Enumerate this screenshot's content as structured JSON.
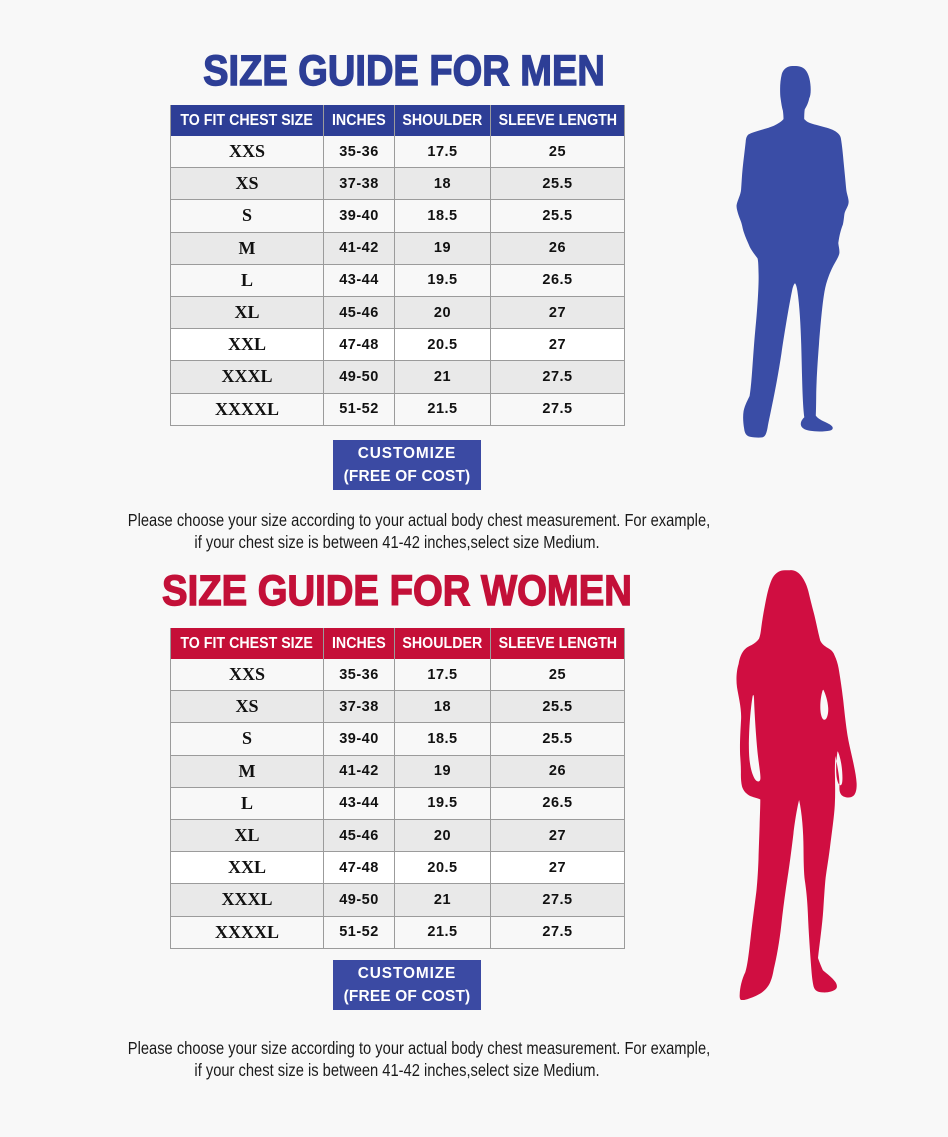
{
  "page": {
    "background": "#f8f8f8"
  },
  "sections": [
    {
      "id": "men",
      "title": "SIZE GUIDE FOR MEN",
      "accent": "#2d3e96",
      "header_bg": "#2d3e96",
      "figure": "man-silhouette",
      "figure_color": "#3a4da6",
      "table": {
        "columns": [
          "TO FIT CHEST SIZE",
          "INCHES",
          "SHOULDER",
          "SLEEVE LENGTH"
        ],
        "rows": [
          [
            "XXS",
            "35-36",
            "17.5",
            "25"
          ],
          [
            "XS",
            "37-38",
            "18",
            "25.5"
          ],
          [
            "S",
            "39-40",
            "18.5",
            "25.5"
          ],
          [
            "M",
            "41-42",
            "19",
            "26"
          ],
          [
            "L",
            "43-44",
            "19.5",
            "26.5"
          ],
          [
            "XL",
            "45-46",
            "20",
            "27"
          ],
          [
            "XXL",
            "47-48",
            "20.5",
            "27"
          ],
          [
            "XXXL",
            "49-50",
            "21",
            "27.5"
          ],
          [
            "XXXXL",
            "51-52",
            "21.5",
            "27.5"
          ]
        ]
      },
      "button": {
        "line1": "CUSTOMIZE",
        "line2": "(FREE OF COST)",
        "bg": "#3b4aa3"
      },
      "note": {
        "line1": "Please choose your size according to your actual body chest measurement. For example,",
        "line2": "if your chest size is between 41-42 inches,select size Medium."
      }
    },
    {
      "id": "women",
      "title": "SIZE GUIDE FOR WOMEN",
      "accent": "#c31038",
      "header_bg": "#c50f38",
      "figure": "woman-silhouette",
      "figure_color": "#d00e41",
      "table": {
        "columns": [
          "TO FIT CHEST SIZE",
          "INCHES",
          "SHOULDER",
          "SLEEVE LENGTH"
        ],
        "rows": [
          [
            "XXS",
            "35-36",
            "17.5",
            "25"
          ],
          [
            "XS",
            "37-38",
            "18",
            "25.5"
          ],
          [
            "S",
            "39-40",
            "18.5",
            "25.5"
          ],
          [
            "M",
            "41-42",
            "19",
            "26"
          ],
          [
            "L",
            "43-44",
            "19.5",
            "26.5"
          ],
          [
            "XL",
            "45-46",
            "20",
            "27"
          ],
          [
            "XXL",
            "47-48",
            "20.5",
            "27"
          ],
          [
            "XXXL",
            "49-50",
            "21",
            "27.5"
          ],
          [
            "XXXXL",
            "51-52",
            "21.5",
            "27.5"
          ]
        ]
      },
      "button": {
        "line1": "CUSTOMIZE",
        "line2": "(FREE OF COST)",
        "bg": "#3b4aa3"
      },
      "note": {
        "line1": "Please choose your size according to your actual body chest measurement. For example,",
        "line2": "if your chest size is between 41-42 inches,select size Medium."
      }
    }
  ]
}
